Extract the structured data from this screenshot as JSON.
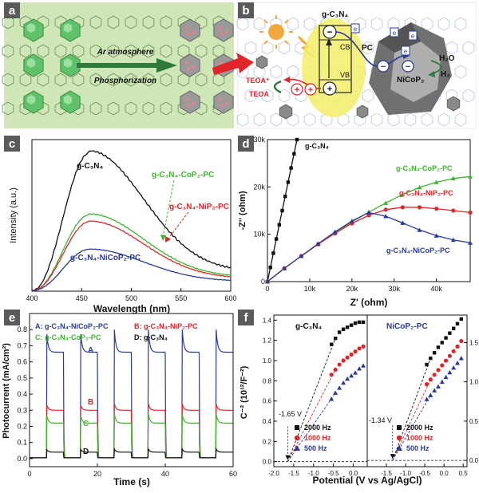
{
  "panel_labels": {
    "a": "a",
    "b": "b",
    "c": "c",
    "d": "d",
    "e": "e",
    "f": "f"
  },
  "colors": {
    "black": "#111111",
    "red": "#e0262b",
    "green": "#3fb52e",
    "blue": "#2a3a9a",
    "panel_a_bg": "#cfe7b6",
    "label_bg": "#5a5a5a",
    "poly_green": "#5fc26a",
    "poly_gray": "#9a9a9a",
    "poly_pink": "#e67f8e"
  },
  "panel_a": {
    "arrow_text_top": "Ar atmosphere",
    "arrow_text_bottom": "Phosphorization"
  },
  "panel_b": {
    "gc3n4_label": "g-C₃N₄",
    "cb_label": "CB",
    "vb_label": "VB",
    "pc_label": "PC",
    "nicop_label": "NiCoP₂",
    "h2o_label": "H₂O",
    "h2_label": "H₂",
    "teoa_plus": "TEOA⁺",
    "teoa": "TEOA",
    "minus": "−",
    "plus": "+",
    "e": "e"
  },
  "chart_data": [
    {
      "panel": "c",
      "type": "line",
      "xlabel": "Wavelength (nm)",
      "ylabel": "Intensity (a.u.)",
      "xlim": [
        400,
        600
      ],
      "xticks": [
        "400",
        "450",
        "500",
        "550",
        "600"
      ],
      "series": [
        {
          "name": "g-C₃N₄",
          "color": "#111111",
          "peak_x": 458,
          "peak": 1.0,
          "tail": 0.14
        },
        {
          "name": "g-C₃N₄-CoP₂-PC",
          "color": "#3fb52e",
          "peak_x": 458,
          "peak": 0.55,
          "tail": 0.1
        },
        {
          "name": "g-C₃N₄-NiP₂-PC",
          "color": "#e0262b",
          "peak_x": 458,
          "peak": 0.5,
          "tail": 0.09
        },
        {
          "name": "g-C₃N₄-NiCoP₂-PC",
          "color": "#2a3a9a",
          "peak_x": 458,
          "peak": 0.3,
          "tail": 0.07
        }
      ]
    },
    {
      "panel": "d",
      "type": "scatter",
      "xlabel": "Z' (ohm)",
      "ylabel": "-Z'' (ohm)",
      "xlim": [
        0,
        48000
      ],
      "ylim": [
        0,
        30000
      ],
      "xticks": [
        "0",
        "10k",
        "20k",
        "30k",
        "40k"
      ],
      "yticks": [
        "0",
        "10k",
        "20k",
        "30k"
      ],
      "series": [
        {
          "name": "g-C₃N₄",
          "color": "#111111",
          "x": [
            0,
            700,
            1400,
            2100,
            2800,
            3500,
            4200,
            4900,
            5600,
            6300,
            7000
          ],
          "y": [
            0,
            3000,
            6000,
            9000,
            12000,
            15000,
            18000,
            21000,
            24000,
            27000,
            30000
          ]
        },
        {
          "name": "g-C₃N₄-CoP₂-PC",
          "color": "#3fb52e",
          "x": [
            0,
            4000,
            8000,
            12000,
            16000,
            20000,
            24000,
            28000,
            32000,
            36000,
            40000,
            44000,
            48000
          ],
          "y": [
            0,
            2800,
            5400,
            7900,
            10300,
            12600,
            14700,
            16600,
            18400,
            19900,
            21000,
            21800,
            22200
          ]
        },
        {
          "name": "g-C₃N₄-NiP₂-PC",
          "color": "#e0262b",
          "x": [
            0,
            4000,
            8000,
            12000,
            16000,
            20000,
            24000,
            28000,
            32000,
            36000,
            40000,
            44000,
            48000
          ],
          "y": [
            0,
            2800,
            5400,
            7900,
            10200,
            12300,
            14000,
            15200,
            15700,
            15700,
            15400,
            15000,
            14600
          ]
        },
        {
          "name": "g-C₃N₄-NiCoP₂-PC",
          "color": "#2a3a9a",
          "x": [
            0,
            4000,
            8000,
            12000,
            16000,
            20000,
            24000,
            28000,
            32000,
            36000,
            40000,
            44000,
            48000
          ],
          "y": [
            0,
            2800,
            5400,
            8000,
            10500,
            12800,
            14600,
            13800,
            12400,
            10900,
            9700,
            8800,
            8200
          ]
        }
      ]
    },
    {
      "panel": "e",
      "type": "line",
      "xlabel": "Time (s)",
      "ylabel": "Photocurrent (mA/cm²)",
      "xlim": [
        0,
        60
      ],
      "ylim": [
        -0.05,
        0.9
      ],
      "xticks": [
        "0",
        "20",
        "40",
        "60"
      ],
      "yticks": [
        "0.0",
        "0.1",
        "0.2",
        "0.3",
        "0.4",
        "0.5",
        "0.6",
        "0.7",
        "0.8"
      ],
      "on_times": [
        5,
        15,
        25,
        35,
        45,
        55
      ],
      "on_duration": 5,
      "legend": [
        {
          "name": "A: g-C₃N₄-NiCoP₂-PC",
          "color": "#2a3a9a"
        },
        {
          "name": "B: g-C₃N₄-NiP₂-PC",
          "color": "#e0262b"
        },
        {
          "name": "C: g-C₃N₄-CoP₂-PC",
          "color": "#3fb52e"
        },
        {
          "name": "D: g-C₃N₄",
          "color": "#111111"
        }
      ],
      "series": [
        {
          "name": "A",
          "color": "#2a3a9a",
          "spike": 0.8,
          "plateau": 0.66
        },
        {
          "name": "B",
          "color": "#e0262b",
          "spike": 0.34,
          "plateau": 0.3
        },
        {
          "name": "C",
          "color": "#3fb52e",
          "spike": 0.28,
          "plateau": 0.22
        },
        {
          "name": "D",
          "color": "#111111",
          "spike": 0.06,
          "plateau": 0.04
        }
      ],
      "curve_labels": [
        "A",
        "B",
        "C",
        "D"
      ]
    },
    {
      "panel": "f",
      "type": "scatter",
      "xlabel": "Potential (V vs Ag/AgCl)",
      "ylabel": "C⁻² (10¹²/F⁻²)",
      "subplots": [
        {
          "title": "g-C₃N₄",
          "xlim": [
            -2.0,
            0.35
          ],
          "ylim": [
            -0.05,
            1.45
          ],
          "xticks": [
            "-2.0",
            "-1.5",
            "-1.0",
            "-0.5",
            "0.0"
          ],
          "yticks": [
            "0.0",
            "0.2",
            "0.4",
            "0.6",
            "0.8",
            "1.0",
            "1.2",
            "1.4"
          ],
          "intercept_label": "-1.65 V",
          "intercept": -1.65,
          "series": [
            {
              "name": "2000 Hz",
              "color": "#111111",
              "x": [
                -0.55,
                -0.45,
                -0.35,
                -0.25,
                -0.15,
                -0.05,
                0.05,
                0.15,
                0.25
              ],
              "y": [
                1.16,
                1.22,
                1.28,
                1.31,
                1.33,
                1.35,
                1.37,
                1.38,
                1.38
              ]
            },
            {
              "name": "1000 Hz",
              "color": "#e0262b",
              "x": [
                -0.55,
                -0.45,
                -0.35,
                -0.25,
                -0.15,
                -0.05,
                0.05,
                0.15,
                0.25
              ],
              "y": [
                0.86,
                0.91,
                0.96,
                1.0,
                1.03,
                1.06,
                1.09,
                1.12,
                1.14
              ]
            },
            {
              "name": "500 Hz",
              "color": "#2a3a9a",
              "x": [
                -0.55,
                -0.45,
                -0.35,
                -0.25,
                -0.15,
                -0.05,
                0.05,
                0.15,
                0.25
              ],
              "y": [
                0.62,
                0.68,
                0.73,
                0.78,
                0.82,
                0.85,
                0.88,
                0.92,
                0.95
              ]
            }
          ]
        },
        {
          "title": "NiCoP₂-PC",
          "xlim": [
            -2.0,
            0.6
          ],
          "ylim": [
            -0.08,
            1.85
          ],
          "xticks": [
            "-1.5",
            "-1.0",
            "-0.5",
            "0.0",
            "0.5"
          ],
          "yticks": [
            "0.0",
            "0.5",
            "1.0",
            "1.5"
          ],
          "intercept_label": "-1.34 V",
          "intercept": -1.34,
          "series": [
            {
              "name": "2000 Hz",
              "color": "#111111",
              "x": [
                -0.45,
                -0.35,
                -0.25,
                -0.15,
                -0.05,
                0.05,
                0.15,
                0.25,
                0.35,
                0.45
              ],
              "y": [
                1.22,
                1.3,
                1.37,
                1.44,
                1.5,
                1.56,
                1.62,
                1.68,
                1.74,
                1.8
              ]
            },
            {
              "name": "1000 Hz",
              "color": "#e0262b",
              "x": [
                -0.45,
                -0.35,
                -0.25,
                -0.15,
                -0.05,
                0.05,
                0.15,
                0.25,
                0.35,
                0.45
              ],
              "y": [
                0.97,
                1.03,
                1.09,
                1.15,
                1.21,
                1.27,
                1.33,
                1.39,
                1.45,
                1.52
              ]
            },
            {
              "name": "500 Hz",
              "color": "#2a3a9a",
              "x": [
                -0.45,
                -0.35,
                -0.25,
                -0.15,
                -0.05,
                0.05,
                0.15,
                0.25,
                0.35,
                0.45
              ],
              "y": [
                0.78,
                0.83,
                0.89,
                0.94,
                1.0,
                1.06,
                1.12,
                1.18,
                1.24,
                1.3
              ]
            }
          ]
        }
      ]
    }
  ]
}
